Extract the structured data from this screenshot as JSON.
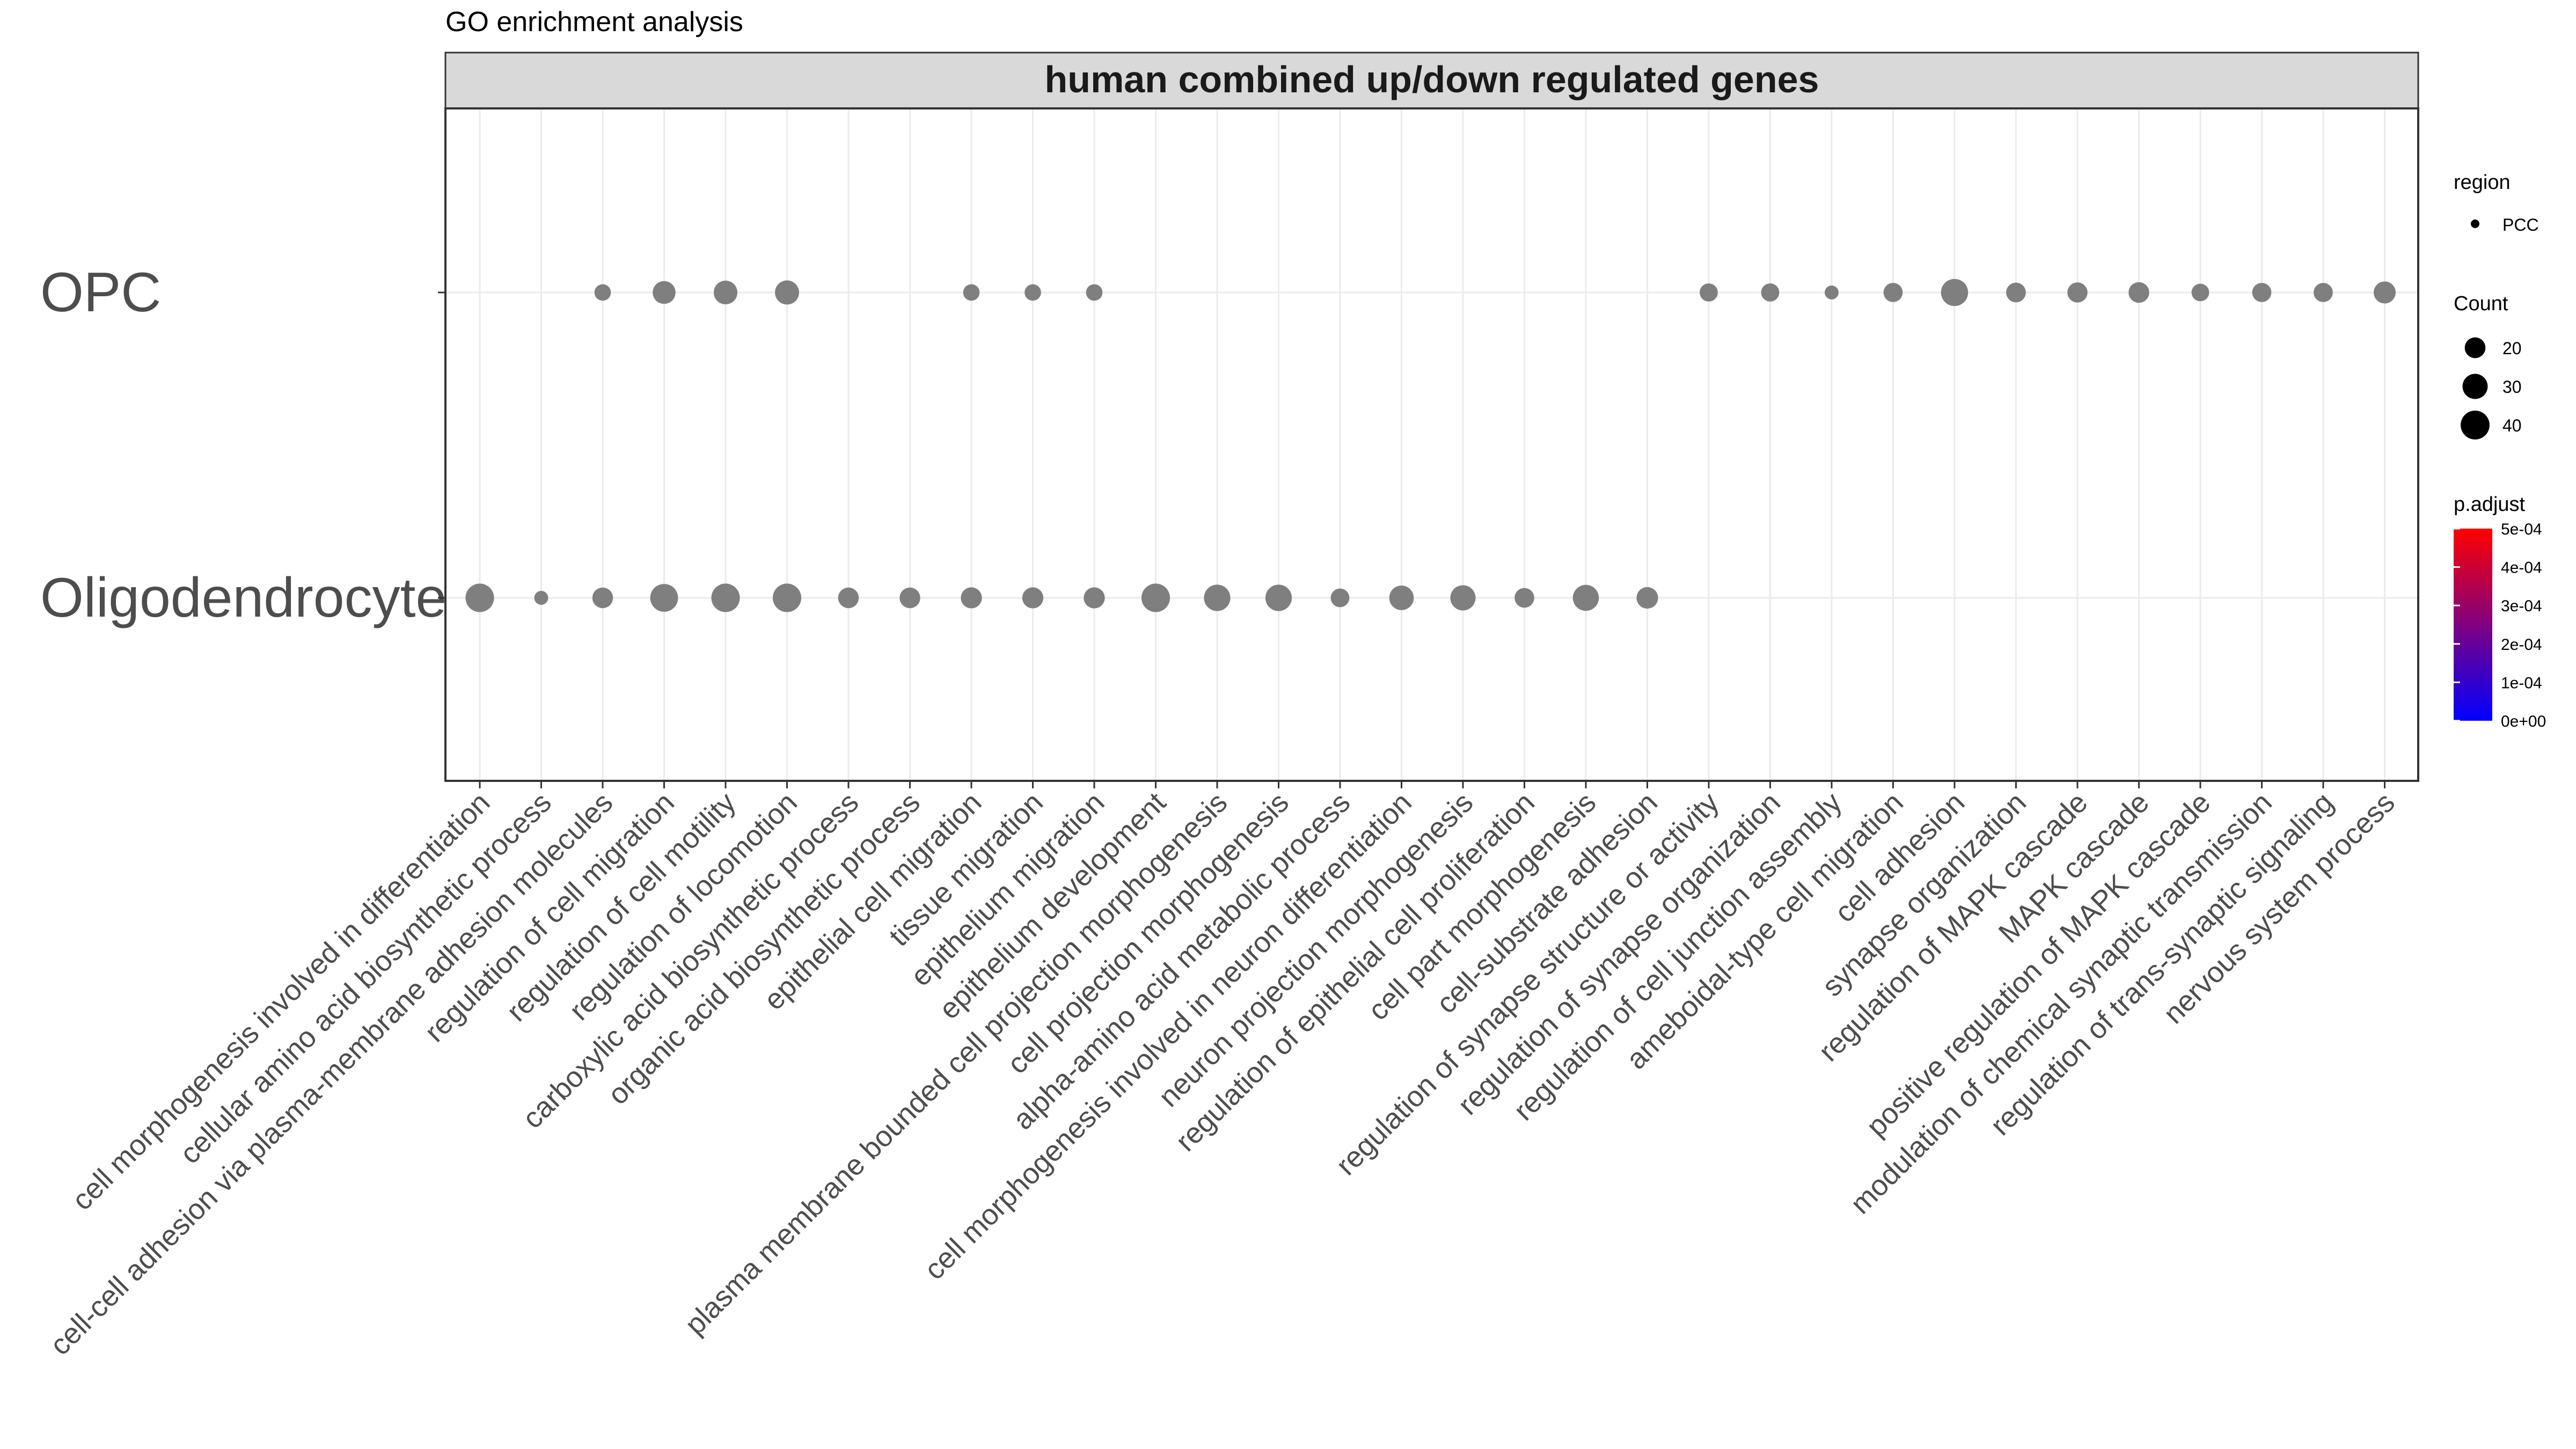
{
  "page": {
    "title": "GO enrichment analysis",
    "panel_title": "human combined up/down regulated genes"
  },
  "legend": {
    "region_title": "region",
    "region_item": "PCC",
    "count_title": "Count",
    "count_items": [
      "20",
      "30",
      "40"
    ],
    "padjust_title": "p.adjust",
    "padjust_ticks": [
      "5e-04",
      "4e-04",
      "3e-04",
      "2e-04",
      "1e-04",
      "0e+00"
    ]
  },
  "colors": {
    "point": "#7f7f7f",
    "grid": "#ebebeb",
    "strip_bg": "#d9d9d9",
    "text": "#4d4d4d",
    "gradient_top": "#ff0000",
    "gradient_bottom": "#0000ff"
  },
  "chart_data": {
    "type": "scatter",
    "title": "GO enrichment analysis",
    "facet": "human combined up/down regulated genes",
    "xlabel": "",
    "ylabel": "",
    "y_categories": [
      "Oligodendrocyte",
      "OPC"
    ],
    "x_categories": [
      "cell morphogenesis involved in differentiation",
      "cellular amino acid biosynthetic process",
      "cell-cell adhesion via plasma-membrane adhesion molecules",
      "regulation of cell migration",
      "regulation of cell motility",
      "regulation of locomotion",
      "carboxylic acid biosynthetic process",
      "organic acid biosynthetic process",
      "epithelial cell migration",
      "tissue migration",
      "epithelium migration",
      "epithelium development",
      "plasma membrane bounded cell projection morphogenesis",
      "cell projection morphogenesis",
      "alpha-amino acid metabolic process",
      "cell morphogenesis involved in neuron differentiation",
      "neuron projection morphogenesis",
      "regulation of epithelial cell proliferation",
      "cell part morphogenesis",
      "cell-substrate adhesion",
      "regulation of synapse structure or activity",
      "regulation of synapse organization",
      "regulation of cell junction assembly",
      "ameboidal-type cell migration",
      "cell adhesion",
      "synapse organization",
      "regulation of MAPK cascade",
      "MAPK cascade",
      "positive regulation of MAPK cascade",
      "modulation of chemical synaptic transmission",
      "regulation of trans-synaptic signaling",
      "nervous system process"
    ],
    "grid": true,
    "legend_position": "right",
    "series": [
      {
        "name": "PCC",
        "points": [
          {
            "y": "Oligodendrocyte",
            "x": "cell morphogenesis involved in differentiation",
            "count": 42
          },
          {
            "y": "Oligodendrocyte",
            "x": "cellular amino acid biosynthetic process",
            "count": 10
          },
          {
            "y": "Oligodendrocyte",
            "x": "cell-cell adhesion via plasma-membrane adhesion molecules",
            "count": 22
          },
          {
            "y": "Oligodendrocyte",
            "x": "regulation of cell migration",
            "count": 40
          },
          {
            "y": "Oligodendrocyte",
            "x": "regulation of cell motility",
            "count": 42
          },
          {
            "y": "Oligodendrocyte",
            "x": "regulation of locomotion",
            "count": 42
          },
          {
            "y": "Oligodendrocyte",
            "x": "carboxylic acid biosynthetic process",
            "count": 22
          },
          {
            "y": "Oligodendrocyte",
            "x": "organic acid biosynthetic process",
            "count": 22
          },
          {
            "y": "Oligodendrocyte",
            "x": "epithelial cell migration",
            "count": 23
          },
          {
            "y": "Oligodendrocyte",
            "x": "tissue migration",
            "count": 23
          },
          {
            "y": "Oligodendrocyte",
            "x": "epithelium migration",
            "count": 23
          },
          {
            "y": "Oligodendrocyte",
            "x": "epithelium development",
            "count": 42
          },
          {
            "y": "Oligodendrocyte",
            "x": "plasma membrane bounded cell projection morphogenesis",
            "count": 36
          },
          {
            "y": "Oligodendrocyte",
            "x": "cell projection morphogenesis",
            "count": 36
          },
          {
            "y": "Oligodendrocyte",
            "x": "alpha-amino acid metabolic process",
            "count": 18
          },
          {
            "y": "Oligodendrocyte",
            "x": "cell morphogenesis involved in neuron differentiation",
            "count": 31
          },
          {
            "y": "Oligodendrocyte",
            "x": "neuron projection morphogenesis",
            "count": 33
          },
          {
            "y": "Oligodendrocyte",
            "x": "regulation of epithelial cell proliferation",
            "count": 20
          },
          {
            "y": "Oligodendrocyte",
            "x": "cell part morphogenesis",
            "count": 35
          },
          {
            "y": "Oligodendrocyte",
            "x": "cell-substrate adhesion",
            "count": 24
          },
          {
            "y": "OPC",
            "x": "cell-cell adhesion via plasma-membrane adhesion molecules",
            "count": 14
          },
          {
            "y": "OPC",
            "x": "regulation of cell migration",
            "count": 27
          },
          {
            "y": "OPC",
            "x": "regulation of cell motility",
            "count": 29
          },
          {
            "y": "OPC",
            "x": "regulation of locomotion",
            "count": 30
          },
          {
            "y": "OPC",
            "x": "epithelial cell migration",
            "count": 14
          },
          {
            "y": "OPC",
            "x": "tissue migration",
            "count": 14
          },
          {
            "y": "OPC",
            "x": "epithelium migration",
            "count": 14
          },
          {
            "y": "OPC",
            "x": "regulation of synapse structure or activity",
            "count": 17
          },
          {
            "y": "OPC",
            "x": "regulation of synapse organization",
            "count": 17
          },
          {
            "y": "OPC",
            "x": "regulation of cell junction assembly",
            "count": 10
          },
          {
            "y": "OPC",
            "x": "ameboidal-type cell migration",
            "count": 19
          },
          {
            "y": "OPC",
            "x": "cell adhesion",
            "count": 38
          },
          {
            "y": "OPC",
            "x": "synapse organization",
            "count": 20
          },
          {
            "y": "OPC",
            "x": "regulation of MAPK cascade",
            "count": 21
          },
          {
            "y": "OPC",
            "x": "MAPK cascade",
            "count": 22
          },
          {
            "y": "OPC",
            "x": "positive regulation of MAPK cascade",
            "count": 16
          },
          {
            "y": "OPC",
            "x": "modulation of chemical synaptic transmission",
            "count": 19
          },
          {
            "y": "OPC",
            "x": "regulation of trans-synaptic signaling",
            "count": 19
          },
          {
            "y": "OPC",
            "x": "nervous system process",
            "count": 25
          }
        ]
      }
    ],
    "count_range": [
      10,
      42
    ],
    "padjust_range": [
      0,
      0.0005
    ]
  }
}
